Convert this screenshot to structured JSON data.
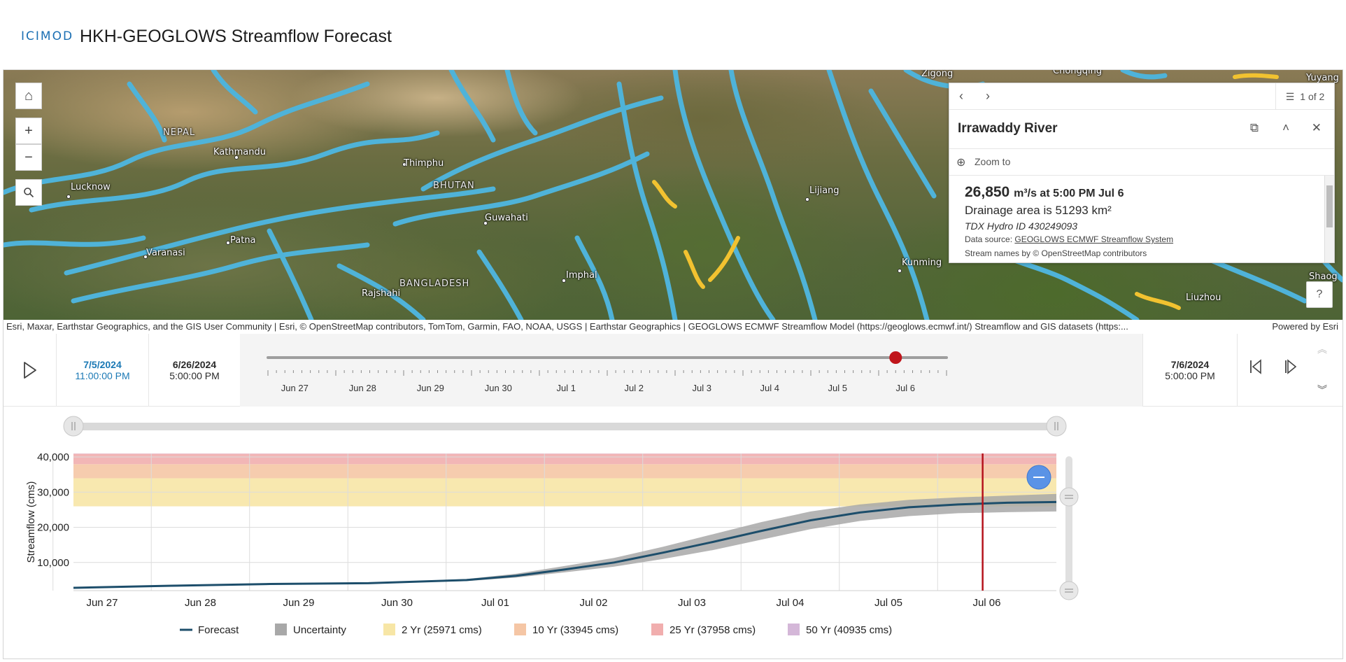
{
  "header": {
    "logo": "ICIMOD",
    "title": "HKH-GEOGLOWS Streamflow Forecast"
  },
  "map": {
    "controls": {
      "home": "home-icon",
      "zoom_in": "+",
      "zoom_out": "−",
      "search": "search-icon"
    },
    "labels": [
      {
        "text": "NEPAL"
      },
      {
        "text": "Kathmandu"
      },
      {
        "text": "Thimphu"
      },
      {
        "text": "BHUTAN"
      },
      {
        "text": "Lucknow"
      },
      {
        "text": "Guwahati"
      },
      {
        "text": "Lijiang"
      },
      {
        "text": "Patna"
      },
      {
        "text": "Varanasi"
      },
      {
        "text": "Kunming"
      },
      {
        "text": "Imphal"
      },
      {
        "text": "Rajshahi"
      },
      {
        "text": "BANGLADESH"
      },
      {
        "text": "Zigong"
      },
      {
        "text": "Chongqing"
      },
      {
        "text": "Yuyang"
      },
      {
        "text": "Liuzhou"
      },
      {
        "text": "Shaog"
      }
    ],
    "attribution": "Esri, Maxar, Earthstar Geographics, and the GIS User Community | Esri, © OpenStreetMap contributors, TomTom, Garmin, FAO, NOAA, USGS | Earthstar Geographics | GEOGLOWS ECMWF Streamflow Model (https://geoglows.ecmwf.int/) Streamflow and GIS datasets (https:...",
    "powered_by": "Powered by Esri",
    "river_color": "#4fb3d9",
    "alert_color": "#f2c230"
  },
  "popup": {
    "page_indicator": "1 of 2",
    "title": "Irrawaddy River",
    "zoom_to": "Zoom to",
    "flow_value": "26,850",
    "flow_unit": "m³/s at 5:00 PM Jul 6",
    "drainage": "Drainage area is 51293 km²",
    "tdx_id": "TDX Hydro ID 430249093",
    "data_source_label": "Data source: ",
    "data_source_link": "GEOGLOWS ECMWF Streamflow System",
    "stream_names": "Stream names by © OpenStreetMap contributors"
  },
  "timeslider": {
    "current_date": "7/5/2024",
    "current_time": "11:00:00 PM",
    "start_date": "6/26/2024",
    "start_time": "5:00:00 PM",
    "end_date": "7/6/2024",
    "end_time": "5:00:00 PM",
    "tick_labels": [
      "Jun 27",
      "Jun 28",
      "Jun 29",
      "Jun 30",
      "Jul 1",
      "Jul 2",
      "Jul 3",
      "Jul 4",
      "Jul 5",
      "Jul 6"
    ],
    "position_fraction": 0.925,
    "thumb_color": "#c0151b"
  },
  "chart_data": {
    "type": "line",
    "title": "",
    "xlabel": "",
    "ylabel": "Streamflow (cms)",
    "ylim": [
      2000,
      41000
    ],
    "yticks": [
      10000,
      20000,
      30000,
      40000
    ],
    "ytick_labels": [
      "10,000",
      "20,000",
      "30,000",
      "40,000"
    ],
    "x_start_hours": 0,
    "x_end_hours": 240,
    "xtick_labels": [
      "Jun 27",
      "Jun 28",
      "Jun 29",
      "Jun 30",
      "Jul 01",
      "Jul 02",
      "Jul 03",
      "Jul 04",
      "Jul 05",
      "Jul 06"
    ],
    "xtick_hours": [
      7,
      31,
      55,
      79,
      103,
      127,
      151,
      175,
      199,
      223
    ],
    "current_time_hours": 222,
    "current_time_color": "#b5121b",
    "series": [
      {
        "name": "Forecast",
        "color": "#1d4e6b",
        "x_hours": [
          0,
          24,
          48,
          72,
          96,
          108,
          120,
          132,
          144,
          156,
          168,
          180,
          192,
          204,
          216,
          228,
          240
        ],
        "values": [
          2800,
          3400,
          3900,
          4100,
          5000,
          6200,
          8000,
          10000,
          12800,
          15800,
          19000,
          22000,
          24200,
          25700,
          26500,
          27000,
          27200
        ]
      },
      {
        "name": "Uncertainty",
        "color": "#a8a8a8",
        "x_hours": [
          0,
          24,
          48,
          72,
          96,
          108,
          120,
          132,
          144,
          156,
          168,
          180,
          192,
          204,
          216,
          228,
          240
        ],
        "lower": [
          2800,
          3400,
          3900,
          4000,
          4700,
          5700,
          7200,
          8800,
          11000,
          13500,
          16500,
          19500,
          21800,
          23200,
          24000,
          24300,
          24500
        ],
        "upper": [
          2800,
          3400,
          3950,
          4200,
          5300,
          6800,
          9000,
          11300,
          14500,
          18000,
          21500,
          24500,
          26500,
          27800,
          28500,
          29000,
          29500
        ]
      }
    ],
    "return_periods": [
      {
        "name": "2 Yr (25971 cms)",
        "value": 25971,
        "color": "#f7e6a6"
      },
      {
        "name": "10 Yr (33945 cms)",
        "value": 33945,
        "color": "#f5c6a5"
      },
      {
        "name": "25 Yr (37958 cms)",
        "value": 37958,
        "color": "#f1aeae"
      },
      {
        "name": "50 Yr (40935 cms)",
        "value": 40935,
        "color": "#d4b7d8"
      }
    ],
    "legend_placement": "bottom",
    "grid": true
  },
  "legend": {
    "forecast": "Forecast",
    "uncertainty": "Uncertainty",
    "rp2": "2 Yr (25971 cms)",
    "rp10": "10 Yr (33945 cms)",
    "rp25": "25 Yr (37958 cms)",
    "rp50": "50 Yr (40935 cms)"
  }
}
